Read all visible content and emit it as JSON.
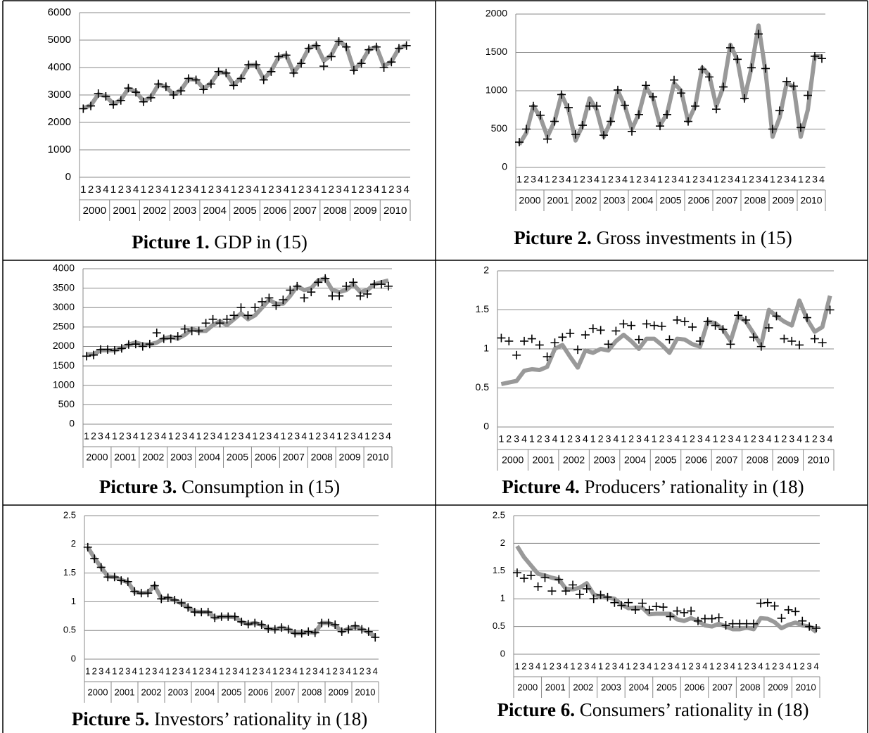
{
  "chart_data": [
    {
      "type": "line",
      "caption_label": "Picture 1.",
      "caption_text": "GDP in (15)",
      "categories": [
        "1",
        "2",
        "3",
        "4",
        "1",
        "2",
        "3",
        "4",
        "1",
        "2",
        "3",
        "4",
        "1",
        "2",
        "3",
        "4",
        "1",
        "2",
        "3",
        "4",
        "1",
        "2",
        "3",
        "4",
        "1",
        "2",
        "3",
        "4",
        "1",
        "2",
        "3",
        "4",
        "1",
        "2",
        "3",
        "4",
        "1",
        "2",
        "3",
        "4",
        "1",
        "2",
        "3",
        "4"
      ],
      "groups": [
        "2000",
        "2001",
        "2002",
        "2003",
        "2004",
        "2005",
        "2006",
        "2007",
        "2008",
        "2009",
        "2010"
      ],
      "ylim": [
        0,
        6000
      ],
      "yticks": [
        0,
        1000,
        2000,
        3000,
        4000,
        5000,
        6000
      ],
      "grid": true,
      "series": [
        {
          "style": "line",
          "color": "#999999",
          "values": [
            2520,
            2620,
            3020,
            2960,
            2680,
            2820,
            3230,
            3120,
            2780,
            2920,
            3380,
            3300,
            3020,
            3180,
            3580,
            3560,
            3230,
            3430,
            3830,
            3800,
            3380,
            3620,
            4080,
            4100,
            3580,
            3880,
            4380,
            4450,
            3820,
            4180,
            4700,
            4820,
            4250,
            4450,
            4980,
            4760,
            3920,
            4180,
            4650,
            4760,
            4050,
            4220,
            4700,
            4820
          ]
        },
        {
          "style": "cross",
          "color": "#000000",
          "values": [
            2500,
            2600,
            3050,
            2950,
            2650,
            2800,
            3250,
            3100,
            2750,
            2900,
            3400,
            3300,
            3000,
            3150,
            3600,
            3550,
            3200,
            3400,
            3850,
            3800,
            3350,
            3600,
            4100,
            4100,
            3550,
            3850,
            4400,
            4450,
            3800,
            4150,
            4700,
            4800,
            4050,
            4400,
            4950,
            4750,
            3900,
            4150,
            4650,
            4750,
            4000,
            4200,
            4700,
            4800
          ]
        }
      ]
    },
    {
      "type": "line",
      "caption_label": "Picture 2.",
      "caption_text": "Gross investments in (15)",
      "categories": [
        "1",
        "2",
        "3",
        "4",
        "1",
        "2",
        "3",
        "4",
        "1",
        "2",
        "3",
        "4",
        "1",
        "2",
        "3",
        "4",
        "1",
        "2",
        "3",
        "4",
        "1",
        "2",
        "3",
        "4",
        "1",
        "2",
        "3",
        "4",
        "1",
        "2",
        "3",
        "4",
        "1",
        "2",
        "3",
        "4",
        "1",
        "2",
        "3",
        "4",
        "1",
        "2",
        "3",
        "4"
      ],
      "groups": [
        "2000",
        "2001",
        "2002",
        "2003",
        "2004",
        "2005",
        "2006",
        "2007",
        "2008",
        "2009",
        "2010"
      ],
      "ylim": [
        0,
        2000
      ],
      "yticks": [
        0,
        500,
        1000,
        1500,
        2000
      ],
      "grid": true,
      "series": [
        {
          "style": "line",
          "color": "#999999",
          "values": [
            300,
            450,
            800,
            650,
            400,
            600,
            950,
            750,
            350,
            550,
            900,
            750,
            400,
            600,
            1000,
            800,
            500,
            700,
            1050,
            900,
            550,
            700,
            1100,
            1000,
            600,
            800,
            1300,
            1200,
            800,
            1050,
            1600,
            1400,
            900,
            1300,
            1850,
            1250,
            400,
            650,
            1100,
            1050,
            400,
            750,
            1450,
            1450
          ]
        },
        {
          "style": "cross",
          "color": "#000000",
          "values": [
            330,
            500,
            800,
            680,
            370,
            600,
            950,
            780,
            430,
            550,
            800,
            800,
            420,
            600,
            1010,
            810,
            470,
            690,
            1070,
            920,
            540,
            690,
            1140,
            970,
            600,
            800,
            1280,
            1180,
            760,
            1050,
            1560,
            1410,
            900,
            1300,
            1740,
            1290,
            500,
            740,
            1120,
            1060,
            520,
            940,
            1450,
            1420
          ]
        }
      ]
    },
    {
      "type": "line",
      "caption_label": "Picture 3.",
      "caption_text": "Consumption in (15)",
      "categories": [
        "1",
        "2",
        "3",
        "4",
        "1",
        "2",
        "3",
        "4",
        "1",
        "2",
        "3",
        "4",
        "1",
        "2",
        "3",
        "4",
        "1",
        "2",
        "3",
        "4",
        "1",
        "2",
        "3",
        "4",
        "1",
        "2",
        "3",
        "4",
        "1",
        "2",
        "3",
        "4",
        "1",
        "2",
        "3",
        "4",
        "1",
        "2",
        "3",
        "4",
        "1",
        "2",
        "3",
        "4"
      ],
      "groups": [
        "2000",
        "2001",
        "2002",
        "2003",
        "2004",
        "2005",
        "2006",
        "2007",
        "2008",
        "2009",
        "2010"
      ],
      "ylim": [
        0,
        4000
      ],
      "yticks": [
        0,
        500,
        1000,
        1500,
        2000,
        2500,
        3000,
        3500,
        4000
      ],
      "grid": true,
      "series": [
        {
          "style": "line",
          "color": "#999999",
          "values": [
            1800,
            1800,
            1900,
            1900,
            1900,
            1950,
            2050,
            2100,
            2050,
            2050,
            2100,
            2200,
            2250,
            2200,
            2300,
            2450,
            2400,
            2400,
            2550,
            2650,
            2550,
            2700,
            2850,
            2700,
            2800,
            3000,
            3200,
            3100,
            3100,
            3300,
            3550,
            3450,
            3500,
            3700,
            3750,
            3450,
            3400,
            3450,
            3600,
            3400,
            3450,
            3600,
            3650,
            3700
          ]
        },
        {
          "style": "cross",
          "color": "#000000",
          "values": [
            1750,
            1780,
            1920,
            1920,
            1900,
            1950,
            2050,
            2060,
            2000,
            2060,
            2350,
            2200,
            2200,
            2260,
            2450,
            2400,
            2400,
            2600,
            2700,
            2600,
            2700,
            2800,
            3000,
            2800,
            3000,
            3150,
            3250,
            3050,
            3200,
            3450,
            3550,
            3250,
            3400,
            3650,
            3750,
            3300,
            3300,
            3550,
            3650,
            3300,
            3350,
            3600,
            3600,
            3550
          ]
        }
      ]
    },
    {
      "type": "line",
      "caption_label": "Picture 4.",
      "caption_text": "Producers’ rationality in (18)",
      "categories": [
        "1",
        "2",
        "3",
        "4",
        "1",
        "2",
        "3",
        "4",
        "1",
        "2",
        "3",
        "4",
        "1",
        "2",
        "3",
        "4",
        "1",
        "2",
        "3",
        "4",
        "1",
        "2",
        "3",
        "4",
        "1",
        "2",
        "3",
        "4",
        "1",
        "2",
        "3",
        "4",
        "1",
        "2",
        "3",
        "4",
        "1",
        "2",
        "3",
        "4",
        "1",
        "2",
        "3",
        "4"
      ],
      "groups": [
        "2000",
        "2001",
        "2002",
        "2003",
        "2004",
        "2005",
        "2006",
        "2007",
        "2008",
        "2009",
        "2010"
      ],
      "ylim": [
        0,
        2
      ],
      "yticks": [
        0,
        0.5,
        1,
        1.5,
        2
      ],
      "grid": true,
      "series": [
        {
          "style": "line",
          "color": "#999999",
          "values": [
            0.55,
            0.57,
            0.59,
            0.72,
            0.74,
            0.73,
            0.77,
            1.0,
            1.05,
            0.9,
            0.76,
            0.98,
            0.95,
            1.0,
            0.98,
            1.1,
            1.18,
            1.1,
            1.0,
            1.13,
            1.13,
            1.05,
            0.95,
            1.13,
            1.12,
            1.06,
            1.03,
            1.35,
            1.33,
            1.25,
            1.1,
            1.42,
            1.35,
            1.2,
            1.05,
            1.5,
            1.42,
            1.35,
            1.3,
            1.62,
            1.38,
            1.22,
            1.28,
            1.68
          ]
        },
        {
          "style": "cross",
          "color": "#000000",
          "values": [
            1.14,
            1.1,
            0.92,
            1.1,
            1.13,
            1.05,
            0.9,
            1.08,
            1.15,
            1.2,
            0.99,
            1.18,
            1.26,
            1.24,
            1.06,
            1.23,
            1.32,
            1.3,
            1.12,
            1.32,
            1.3,
            1.29,
            1.12,
            1.37,
            1.35,
            1.28,
            1.1,
            1.35,
            1.3,
            1.25,
            1.06,
            1.43,
            1.37,
            1.15,
            1.03,
            1.27,
            1.42,
            1.13,
            1.1,
            1.05,
            1.4,
            1.13,
            1.08,
            1.5
          ]
        }
      ]
    },
    {
      "type": "line",
      "caption_label": "Picture 5.",
      "caption_text": "Investors’ rationality in (18)",
      "categories": [
        "1",
        "2",
        "3",
        "4",
        "1",
        "2",
        "3",
        "4",
        "1",
        "2",
        "3",
        "4",
        "1",
        "2",
        "3",
        "4",
        "1",
        "2",
        "3",
        "4",
        "1",
        "2",
        "3",
        "4",
        "1",
        "2",
        "3",
        "4",
        "1",
        "2",
        "3",
        "4",
        "1",
        "2",
        "3",
        "4",
        "1",
        "2",
        "3",
        "4",
        "1",
        "2",
        "3",
        "4"
      ],
      "groups": [
        "2000",
        "2001",
        "2002",
        "2003",
        "2004",
        "2005",
        "2006",
        "2007",
        "2008",
        "2009",
        "2010"
      ],
      "ylim": [
        0,
        2.5
      ],
      "yticks": [
        0,
        0.5,
        1,
        1.5,
        2,
        2.5
      ],
      "grid": true,
      "series": [
        {
          "style": "line",
          "color": "#999999",
          "values": [
            1.95,
            1.76,
            1.6,
            1.44,
            1.43,
            1.38,
            1.34,
            1.17,
            1.15,
            1.16,
            1.28,
            1.06,
            1.07,
            1.03,
            0.97,
            0.9,
            0.83,
            0.82,
            0.82,
            0.72,
            0.74,
            0.74,
            0.73,
            0.65,
            0.61,
            0.63,
            0.6,
            0.53,
            0.52,
            0.55,
            0.52,
            0.45,
            0.45,
            0.47,
            0.46,
            0.63,
            0.63,
            0.59,
            0.48,
            0.53,
            0.57,
            0.52,
            0.47,
            0.39
          ]
        },
        {
          "style": "cross",
          "color": "#000000",
          "values": [
            1.95,
            1.75,
            1.6,
            1.43,
            1.43,
            1.37,
            1.35,
            1.18,
            1.15,
            1.15,
            1.28,
            1.05,
            1.07,
            1.03,
            0.98,
            0.9,
            0.82,
            0.82,
            0.82,
            0.72,
            0.74,
            0.74,
            0.74,
            0.65,
            0.61,
            0.63,
            0.6,
            0.53,
            0.52,
            0.55,
            0.52,
            0.45,
            0.45,
            0.48,
            0.46,
            0.63,
            0.63,
            0.6,
            0.48,
            0.52,
            0.58,
            0.52,
            0.48,
            0.38
          ]
        }
      ]
    },
    {
      "type": "line",
      "caption_label": "Picture 6.",
      "caption_text": "Consumers’ rationality in (18)",
      "categories": [
        "1",
        "2",
        "3",
        "4",
        "1",
        "2",
        "3",
        "4",
        "1",
        "2",
        "3",
        "4",
        "1",
        "2",
        "3",
        "4",
        "1",
        "2",
        "3",
        "4",
        "1",
        "2",
        "3",
        "4",
        "1",
        "2",
        "3",
        "4",
        "1",
        "2",
        "3",
        "4",
        "1",
        "2",
        "3",
        "4",
        "1",
        "2",
        "3",
        "4",
        "1",
        "2",
        "3",
        "4"
      ],
      "groups": [
        "2000",
        "2001",
        "2002",
        "2003",
        "2004",
        "2005",
        "2006",
        "2007",
        "2008",
        "2009",
        "2010"
      ],
      "ylim": [
        0,
        2.5
      ],
      "yticks": [
        0,
        0.5,
        1,
        1.5,
        2,
        2.5
      ],
      "grid": true,
      "series": [
        {
          "style": "line",
          "color": "#999999",
          "values": [
            1.95,
            1.75,
            1.6,
            1.45,
            1.42,
            1.38,
            1.35,
            1.18,
            1.17,
            1.2,
            1.28,
            1.08,
            1.03,
            1.02,
            1.0,
            0.9,
            0.83,
            0.84,
            0.84,
            0.72,
            0.73,
            0.73,
            0.73,
            0.63,
            0.6,
            0.65,
            0.6,
            0.52,
            0.5,
            0.55,
            0.5,
            0.45,
            0.45,
            0.48,
            0.45,
            0.65,
            0.64,
            0.58,
            0.47,
            0.53,
            0.57,
            0.52,
            0.5,
            0.4
          ]
        },
        {
          "style": "cross",
          "color": "#000000",
          "values": [
            1.47,
            1.37,
            1.42,
            1.22,
            1.38,
            1.14,
            1.35,
            1.14,
            1.25,
            1.08,
            1.18,
            1.0,
            1.07,
            1.03,
            0.93,
            0.88,
            0.93,
            0.8,
            0.92,
            0.8,
            0.86,
            0.85,
            0.68,
            0.78,
            0.75,
            0.78,
            0.6,
            0.64,
            0.64,
            0.66,
            0.52,
            0.55,
            0.55,
            0.55,
            0.55,
            0.92,
            0.93,
            0.87,
            0.65,
            0.8,
            0.77,
            0.6,
            0.5,
            0.47
          ]
        }
      ]
    }
  ]
}
